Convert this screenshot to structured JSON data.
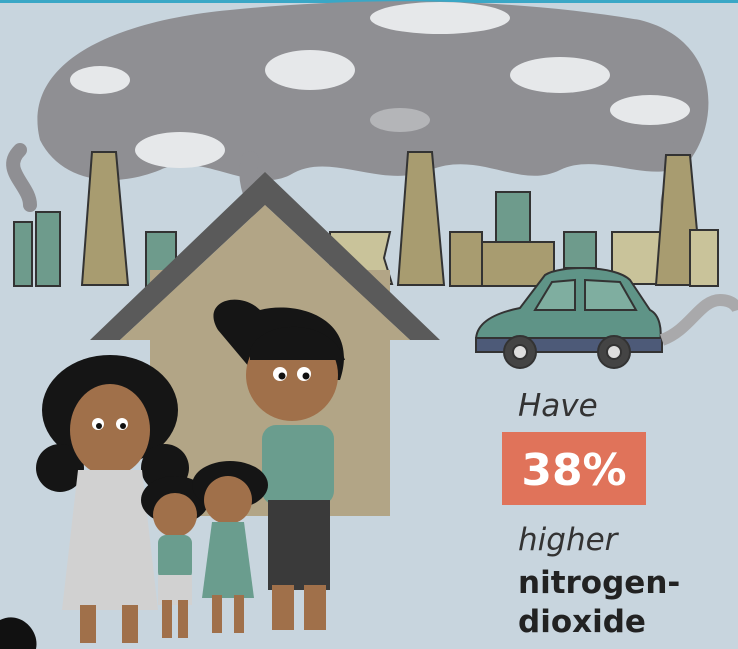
{
  "infographic": {
    "lead": "Have",
    "stat": "38%",
    "qualifier": "higher",
    "pollutant_line1": "nitrogen-",
    "pollutant_line2": "dioxide"
  }
}
